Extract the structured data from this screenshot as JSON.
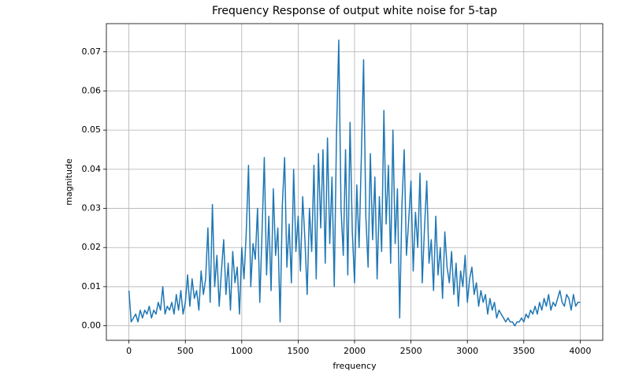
{
  "chart_data": {
    "type": "line",
    "title": "Frequency Response of output white noise for 5-tap",
    "x_label": "frequency",
    "y_label": "magnitude",
    "color": "#1f77b4",
    "grid": true,
    "xlim": [
      -200,
      4200
    ],
    "ylim": [
      -0.0037,
      0.0772
    ],
    "xticks": [
      0,
      500,
      1000,
      1500,
      2000,
      2500,
      3000,
      3500,
      4000
    ],
    "yticks": [
      {
        "value": 0,
        "label": "0.00"
      },
      {
        "value": 0.01,
        "label": "0.01"
      },
      {
        "value": 0.02,
        "label": "0.02"
      },
      {
        "value": 0.03,
        "label": "0.03"
      },
      {
        "value": 0.04,
        "label": "0.04"
      },
      {
        "value": 0.05,
        "label": "0.05"
      },
      {
        "value": 0.06,
        "label": "0.06"
      },
      {
        "value": 0.07,
        "label": "0.07"
      }
    ],
    "x": [
      0,
      20,
      40,
      60,
      80,
      100,
      120,
      140,
      160,
      180,
      200,
      220,
      240,
      260,
      280,
      300,
      320,
      340,
      360,
      380,
      400,
      420,
      440,
      460,
      480,
      500,
      520,
      540,
      560,
      580,
      600,
      620,
      640,
      660,
      680,
      700,
      720,
      740,
      760,
      780,
      800,
      820,
      840,
      860,
      880,
      900,
      920,
      940,
      960,
      980,
      1000,
      1020,
      1040,
      1060,
      1080,
      1100,
      1120,
      1140,
      1160,
      1180,
      1200,
      1220,
      1240,
      1260,
      1280,
      1300,
      1320,
      1340,
      1360,
      1380,
      1400,
      1420,
      1440,
      1460,
      1480,
      1500,
      1520,
      1540,
      1560,
      1580,
      1600,
      1620,
      1640,
      1660,
      1680,
      1700,
      1720,
      1740,
      1760,
      1780,
      1800,
      1820,
      1840,
      1860,
      1880,
      1900,
      1920,
      1940,
      1960,
      1980,
      2000,
      2020,
      2040,
      2060,
      2080,
      2100,
      2120,
      2140,
      2160,
      2180,
      2200,
      2220,
      2240,
      2260,
      2280,
      2300,
      2320,
      2340,
      2360,
      2380,
      2400,
      2420,
      2440,
      2460,
      2480,
      2500,
      2520,
      2540,
      2560,
      2580,
      2600,
      2620,
      2640,
      2660,
      2680,
      2700,
      2720,
      2740,
      2760,
      2780,
      2800,
      2820,
      2840,
      2860,
      2880,
      2900,
      2920,
      2940,
      2960,
      2980,
      3000,
      3020,
      3040,
      3060,
      3080,
      3100,
      3120,
      3140,
      3160,
      3180,
      3200,
      3220,
      3240,
      3260,
      3280,
      3300,
      3320,
      3340,
      3360,
      3380,
      3400,
      3420,
      3440,
      3460,
      3480,
      3500,
      3520,
      3540,
      3560,
      3580,
      3600,
      3620,
      3640,
      3660,
      3680,
      3700,
      3720,
      3740,
      3760,
      3780,
      3800,
      3820,
      3840,
      3860,
      3880,
      3900,
      3920,
      3940,
      3960,
      3980,
      4000
    ],
    "values": [
      0.009,
      0.001,
      0.002,
      0.003,
      0.001,
      0.004,
      0.002,
      0.004,
      0.003,
      0.005,
      0.002,
      0.004,
      0.003,
      0.006,
      0.004,
      0.01,
      0.003,
      0.005,
      0.004,
      0.006,
      0.003,
      0.008,
      0.004,
      0.009,
      0.003,
      0.006,
      0.013,
      0.005,
      0.012,
      0.007,
      0.009,
      0.004,
      0.014,
      0.008,
      0.012,
      0.025,
      0.006,
      0.031,
      0.01,
      0.018,
      0.005,
      0.014,
      0.022,
      0.008,
      0.016,
      0.004,
      0.019,
      0.011,
      0.015,
      0.003,
      0.02,
      0.012,
      0.024,
      0.041,
      0.01,
      0.021,
      0.017,
      0.03,
      0.006,
      0.024,
      0.043,
      0.013,
      0.028,
      0.009,
      0.035,
      0.018,
      0.025,
      0.001,
      0.031,
      0.043,
      0.015,
      0.026,
      0.011,
      0.04,
      0.019,
      0.028,
      0.014,
      0.033,
      0.022,
      0.008,
      0.03,
      0.019,
      0.041,
      0.012,
      0.044,
      0.025,
      0.045,
      0.016,
      0.048,
      0.021,
      0.038,
      0.01,
      0.049,
      0.073,
      0.03,
      0.018,
      0.045,
      0.013,
      0.052,
      0.024,
      0.011,
      0.036,
      0.02,
      0.043,
      0.068,
      0.028,
      0.015,
      0.044,
      0.022,
      0.038,
      0.012,
      0.033,
      0.019,
      0.055,
      0.026,
      0.041,
      0.016,
      0.05,
      0.021,
      0.035,
      0.002,
      0.031,
      0.045,
      0.018,
      0.027,
      0.037,
      0.014,
      0.029,
      0.02,
      0.039,
      0.011,
      0.025,
      0.037,
      0.016,
      0.022,
      0.009,
      0.028,
      0.013,
      0.02,
      0.007,
      0.024,
      0.015,
      0.011,
      0.019,
      0.008,
      0.016,
      0.005,
      0.014,
      0.01,
      0.018,
      0.006,
      0.012,
      0.015,
      0.008,
      0.011,
      0.005,
      0.009,
      0.006,
      0.008,
      0.003,
      0.007,
      0.004,
      0.006,
      0.002,
      0.004,
      0.003,
      0.002,
      0.001,
      0.002,
      0.001,
      0.001,
      0.0,
      0.001,
      0.001,
      0.002,
      0.001,
      0.003,
      0.002,
      0.004,
      0.003,
      0.005,
      0.003,
      0.006,
      0.004,
      0.007,
      0.005,
      0.008,
      0.004,
      0.006,
      0.005,
      0.007,
      0.009,
      0.006,
      0.005,
      0.008,
      0.007,
      0.004,
      0.008,
      0.005,
      0.006,
      0.006
    ]
  }
}
